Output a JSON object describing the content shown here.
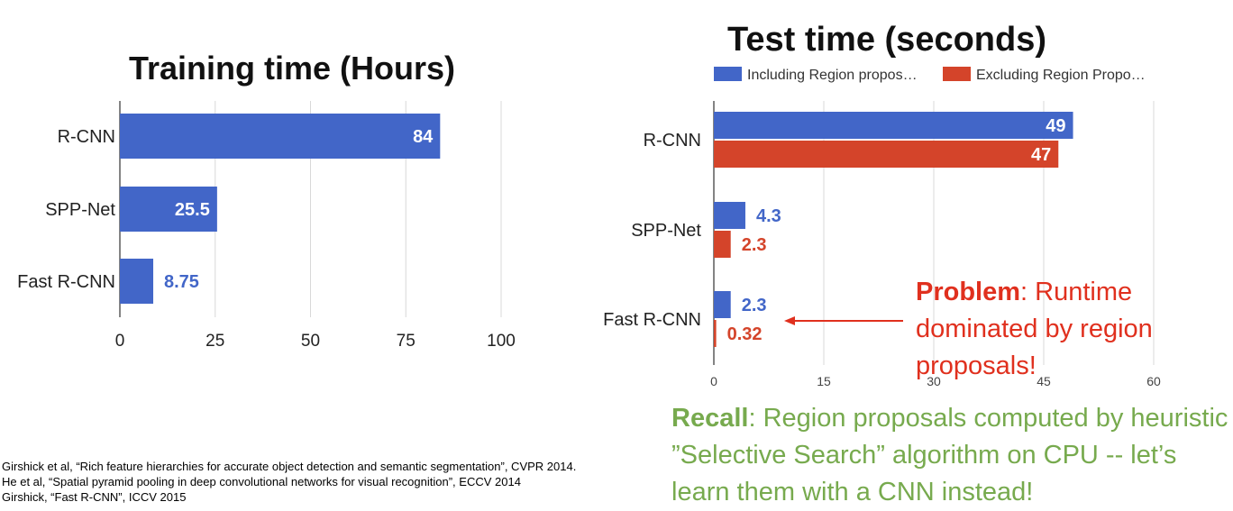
{
  "chart_data": [
    {
      "type": "bar",
      "orientation": "horizontal",
      "title": "Training time (Hours)",
      "categories": [
        "R-CNN",
        "SPP-Net",
        "Fast R-CNN"
      ],
      "values": [
        84,
        25.5,
        8.75
      ],
      "value_labels": [
        "84",
        "25.5",
        "8.75"
      ],
      "xticks": [
        "0",
        "25",
        "50",
        "75",
        "100"
      ],
      "xlim": [
        0,
        100
      ],
      "grid": true,
      "color": "#4266c8"
    },
    {
      "type": "bar",
      "orientation": "horizontal",
      "title": "Test time (seconds)",
      "categories": [
        "R-CNN",
        "SPP-Net",
        "Fast R-CNN"
      ],
      "series": [
        {
          "name": "Including Region propos…",
          "values": [
            49,
            4.3,
            2.3
          ],
          "labels": [
            "49",
            "4.3",
            "2.3"
          ],
          "color": "#4266c8"
        },
        {
          "name": "Excluding Region Propo…",
          "values": [
            47,
            2.3,
            0.32
          ],
          "labels": [
            "47",
            "2.3",
            "0.32"
          ],
          "color": "#d4442a"
        }
      ],
      "xticks": [
        "0",
        "15",
        "30",
        "45",
        "60"
      ],
      "xlim": [
        0,
        60
      ],
      "grid": true,
      "legend": "top"
    }
  ],
  "annotations": {
    "problem_bold": "Problem",
    "problem_rest": ": Runtime dominated by region proposals!",
    "recall_bold": "Recall",
    "recall_rest": ": Region proposals computed by heuristic ”Selective Search” algorithm on CPU -- let’s learn them with a CNN instead!"
  },
  "references": [
    "Girshick et al, “Rich feature hierarchies for accurate object detection and semantic segmentation”, CVPR 2014.",
    "He et al, “Spatial pyramid pooling in deep convolutional networks for visual recognition”, ECCV 2014",
    "Girshick, “Fast R-CNN”, ICCV 2015"
  ]
}
